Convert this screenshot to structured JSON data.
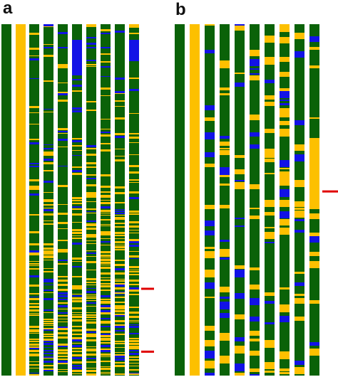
{
  "colors": {
    "green": "#0a6208",
    "yellow": "#fdc000",
    "blue": "#1212e6",
    "marker": "#e00000",
    "background": "#ffffff"
  },
  "panels": [
    {
      "label": "a",
      "columns": [
        {
          "pattern": "solid-green"
        },
        {
          "pattern": "solid-yellow"
        },
        {
          "pattern": "striped"
        },
        {
          "pattern": "striped"
        },
        {
          "pattern": "striped"
        },
        {
          "pattern": "striped"
        },
        {
          "pattern": "striped"
        },
        {
          "pattern": "striped"
        },
        {
          "pattern": "striped"
        },
        {
          "pattern": "striped"
        }
      ],
      "markers": [
        {
          "fraction": 0.753
        },
        {
          "fraction": 0.932
        }
      ]
    },
    {
      "label": "b",
      "columns": [
        {
          "pattern": "solid-green"
        },
        {
          "pattern": "solid-yellow"
        },
        {
          "pattern": "striped"
        },
        {
          "pattern": "striped"
        },
        {
          "pattern": "striped"
        },
        {
          "pattern": "striped"
        },
        {
          "pattern": "striped"
        },
        {
          "pattern": "striped"
        },
        {
          "pattern": "striped"
        },
        {
          "pattern": "striped"
        }
      ],
      "markers": [
        {
          "fraction": 0.476
        }
      ]
    }
  ]
}
